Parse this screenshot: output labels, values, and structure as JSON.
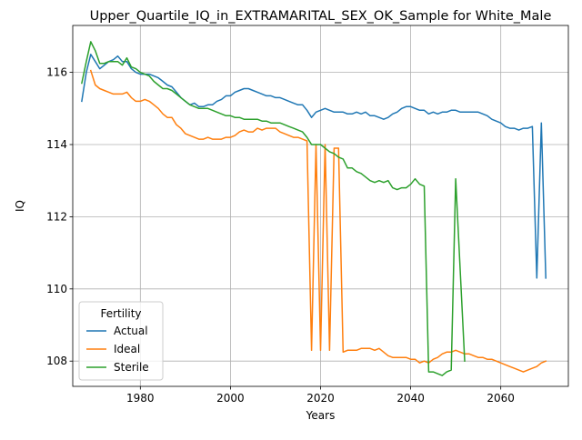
{
  "chart_data": {
    "type": "line",
    "title": "Upper_Quartile_IQ_in_EXTRAMARITAL_SEX_OK_Sample for White_Male",
    "xlabel": "Years",
    "ylabel": "IQ",
    "xlim": [
      1965,
      2075
    ],
    "ylim": [
      107.3,
      117.3
    ],
    "xticks": [
      1980,
      2000,
      2020,
      2040,
      2060
    ],
    "yticks": [
      108,
      110,
      112,
      114,
      116
    ],
    "grid": true,
    "legend": {
      "title": "Fertility",
      "placement": "lower-left"
    },
    "series": [
      {
        "name": "Actual",
        "color": "#1f77b4",
        "points": [
          [
            1967,
            115.2
          ],
          [
            1968,
            116.0
          ],
          [
            1969,
            116.5
          ],
          [
            1970,
            116.3
          ],
          [
            1971,
            116.1
          ],
          [
            1972,
            116.2
          ],
          [
            1973,
            116.3
          ],
          [
            1974,
            116.35
          ],
          [
            1975,
            116.45
          ],
          [
            1976,
            116.3
          ],
          [
            1977,
            116.3
          ],
          [
            1978,
            116.1
          ],
          [
            1979,
            116.0
          ],
          [
            1980,
            115.95
          ],
          [
            1981,
            115.95
          ],
          [
            1982,
            115.95
          ],
          [
            1983,
            115.9
          ],
          [
            1984,
            115.85
          ],
          [
            1985,
            115.75
          ],
          [
            1986,
            115.65
          ],
          [
            1987,
            115.6
          ],
          [
            1988,
            115.45
          ],
          [
            1989,
            115.3
          ],
          [
            1990,
            115.2
          ],
          [
            1991,
            115.1
          ],
          [
            1992,
            115.15
          ],
          [
            1993,
            115.05
          ],
          [
            1994,
            115.05
          ],
          [
            1995,
            115.1
          ],
          [
            1996,
            115.1
          ],
          [
            1997,
            115.2
          ],
          [
            1998,
            115.25
          ],
          [
            1999,
            115.35
          ],
          [
            2000,
            115.35
          ],
          [
            2001,
            115.45
          ],
          [
            2002,
            115.5
          ],
          [
            2003,
            115.55
          ],
          [
            2004,
            115.55
          ],
          [
            2005,
            115.5
          ],
          [
            2006,
            115.45
          ],
          [
            2007,
            115.4
          ],
          [
            2008,
            115.35
          ],
          [
            2009,
            115.35
          ],
          [
            2010,
            115.3
          ],
          [
            2011,
            115.3
          ],
          [
            2012,
            115.25
          ],
          [
            2013,
            115.2
          ],
          [
            2014,
            115.15
          ],
          [
            2015,
            115.1
          ],
          [
            2016,
            115.1
          ],
          [
            2017,
            114.95
          ],
          [
            2018,
            114.75
          ],
          [
            2019,
            114.9
          ],
          [
            2020,
            114.95
          ],
          [
            2021,
            115.0
          ],
          [
            2022,
            114.95
          ],
          [
            2023,
            114.9
          ],
          [
            2024,
            114.9
          ],
          [
            2025,
            114.9
          ],
          [
            2026,
            114.85
          ],
          [
            2027,
            114.85
          ],
          [
            2028,
            114.9
          ],
          [
            2029,
            114.85
          ],
          [
            2030,
            114.9
          ],
          [
            2031,
            114.8
          ],
          [
            2032,
            114.8
          ],
          [
            2033,
            114.75
          ],
          [
            2034,
            114.7
          ],
          [
            2035,
            114.75
          ],
          [
            2036,
            114.85
          ],
          [
            2037,
            114.9
          ],
          [
            2038,
            115.0
          ],
          [
            2039,
            115.05
          ],
          [
            2040,
            115.05
          ],
          [
            2041,
            115.0
          ],
          [
            2042,
            114.95
          ],
          [
            2043,
            114.95
          ],
          [
            2044,
            114.85
          ],
          [
            2045,
            114.9
          ],
          [
            2046,
            114.85
          ],
          [
            2047,
            114.9
          ],
          [
            2048,
            114.9
          ],
          [
            2049,
            114.95
          ],
          [
            2050,
            114.95
          ],
          [
            2051,
            114.9
          ],
          [
            2052,
            114.9
          ],
          [
            2053,
            114.9
          ],
          [
            2054,
            114.9
          ],
          [
            2055,
            114.9
          ],
          [
            2056,
            114.85
          ],
          [
            2057,
            114.8
          ],
          [
            2058,
            114.7
          ],
          [
            2059,
            114.65
          ],
          [
            2060,
            114.6
          ],
          [
            2061,
            114.5
          ],
          [
            2062,
            114.45
          ],
          [
            2063,
            114.45
          ],
          [
            2064,
            114.4
          ],
          [
            2065,
            114.45
          ],
          [
            2066,
            114.45
          ],
          [
            2067,
            114.5
          ],
          [
            2068,
            110.3
          ],
          [
            2069,
            114.6
          ],
          [
            2070,
            110.3
          ]
        ]
      },
      {
        "name": "Ideal",
        "color": "#ff7f0e",
        "points": [
          [
            1969,
            116.05
          ],
          [
            1970,
            115.65
          ],
          [
            1971,
            115.55
          ],
          [
            1972,
            115.5
          ],
          [
            1973,
            115.45
          ],
          [
            1974,
            115.4
          ],
          [
            1975,
            115.4
          ],
          [
            1976,
            115.4
          ],
          [
            1977,
            115.45
          ],
          [
            1978,
            115.3
          ],
          [
            1979,
            115.2
          ],
          [
            1980,
            115.2
          ],
          [
            1981,
            115.25
          ],
          [
            1982,
            115.2
          ],
          [
            1983,
            115.1
          ],
          [
            1984,
            115.0
          ],
          [
            1985,
            114.85
          ],
          [
            1986,
            114.75
          ],
          [
            1987,
            114.75
          ],
          [
            1988,
            114.55
          ],
          [
            1989,
            114.45
          ],
          [
            1990,
            114.3
          ],
          [
            1991,
            114.25
          ],
          [
            1992,
            114.2
          ],
          [
            1993,
            114.15
          ],
          [
            1994,
            114.15
          ],
          [
            1995,
            114.2
          ],
          [
            1996,
            114.15
          ],
          [
            1997,
            114.15
          ],
          [
            1998,
            114.15
          ],
          [
            1999,
            114.2
          ],
          [
            2000,
            114.2
          ],
          [
            2001,
            114.25
          ],
          [
            2002,
            114.35
          ],
          [
            2003,
            114.4
          ],
          [
            2004,
            114.35
          ],
          [
            2005,
            114.35
          ],
          [
            2006,
            114.45
          ],
          [
            2007,
            114.4
          ],
          [
            2008,
            114.45
          ],
          [
            2009,
            114.45
          ],
          [
            2010,
            114.45
          ],
          [
            2011,
            114.35
          ],
          [
            2012,
            114.3
          ],
          [
            2013,
            114.25
          ],
          [
            2014,
            114.2
          ],
          [
            2015,
            114.2
          ],
          [
            2016,
            114.15
          ],
          [
            2017,
            114.1
          ],
          [
            2018,
            108.3
          ],
          [
            2019,
            114.0
          ],
          [
            2020,
            108.3
          ],
          [
            2021,
            114.0
          ],
          [
            2022,
            108.3
          ],
          [
            2023,
            113.9
          ],
          [
            2024,
            113.9
          ],
          [
            2025,
            108.25
          ],
          [
            2026,
            108.3
          ],
          [
            2027,
            108.3
          ],
          [
            2028,
            108.3
          ],
          [
            2029,
            108.35
          ],
          [
            2030,
            108.35
          ],
          [
            2031,
            108.35
          ],
          [
            2032,
            108.3
          ],
          [
            2033,
            108.35
          ],
          [
            2034,
            108.25
          ],
          [
            2035,
            108.15
          ],
          [
            2036,
            108.1
          ],
          [
            2037,
            108.1
          ],
          [
            2038,
            108.1
          ],
          [
            2039,
            108.1
          ],
          [
            2040,
            108.05
          ],
          [
            2041,
            108.05
          ],
          [
            2042,
            107.95
          ],
          [
            2043,
            108.0
          ],
          [
            2044,
            107.95
          ],
          [
            2045,
            108.05
          ],
          [
            2046,
            108.1
          ],
          [
            2047,
            108.2
          ],
          [
            2048,
            108.25
          ],
          [
            2049,
            108.25
          ],
          [
            2050,
            108.3
          ],
          [
            2051,
            108.25
          ],
          [
            2052,
            108.2
          ],
          [
            2053,
            108.2
          ],
          [
            2054,
            108.15
          ],
          [
            2055,
            108.1
          ],
          [
            2056,
            108.1
          ],
          [
            2057,
            108.05
          ],
          [
            2058,
            108.05
          ],
          [
            2059,
            108.0
          ],
          [
            2060,
            107.95
          ],
          [
            2061,
            107.9
          ],
          [
            2062,
            107.85
          ],
          [
            2063,
            107.8
          ],
          [
            2064,
            107.75
          ],
          [
            2065,
            107.7
          ],
          [
            2066,
            107.75
          ],
          [
            2067,
            107.8
          ],
          [
            2068,
            107.85
          ],
          [
            2069,
            107.95
          ],
          [
            2070,
            108.0
          ]
        ]
      },
      {
        "name": "Sterile",
        "color": "#2ca02c",
        "points": [
          [
            1967,
            115.7
          ],
          [
            1968,
            116.3
          ],
          [
            1969,
            116.85
          ],
          [
            1970,
            116.6
          ],
          [
            1971,
            116.25
          ],
          [
            1972,
            116.25
          ],
          [
            1973,
            116.3
          ],
          [
            1974,
            116.3
          ],
          [
            1975,
            116.3
          ],
          [
            1976,
            116.2
          ],
          [
            1977,
            116.4
          ],
          [
            1978,
            116.15
          ],
          [
            1979,
            116.1
          ],
          [
            1980,
            116.0
          ],
          [
            1981,
            115.95
          ],
          [
            1982,
            115.9
          ],
          [
            1983,
            115.75
          ],
          [
            1984,
            115.65
          ],
          [
            1985,
            115.55
          ],
          [
            1986,
            115.55
          ],
          [
            1987,
            115.5
          ],
          [
            1988,
            115.4
          ],
          [
            1989,
            115.3
          ],
          [
            1990,
            115.2
          ],
          [
            1991,
            115.1
          ],
          [
            1992,
            115.05
          ],
          [
            1993,
            115.0
          ],
          [
            1994,
            115.0
          ],
          [
            1995,
            115.0
          ],
          [
            1996,
            114.95
          ],
          [
            1997,
            114.9
          ],
          [
            1998,
            114.85
          ],
          [
            1999,
            114.8
          ],
          [
            2000,
            114.8
          ],
          [
            2001,
            114.75
          ],
          [
            2002,
            114.75
          ],
          [
            2003,
            114.7
          ],
          [
            2004,
            114.7
          ],
          [
            2005,
            114.7
          ],
          [
            2006,
            114.7
          ],
          [
            2007,
            114.65
          ],
          [
            2008,
            114.65
          ],
          [
            2009,
            114.6
          ],
          [
            2010,
            114.6
          ],
          [
            2011,
            114.6
          ],
          [
            2012,
            114.55
          ],
          [
            2013,
            114.5
          ],
          [
            2014,
            114.45
          ],
          [
            2015,
            114.4
          ],
          [
            2016,
            114.35
          ],
          [
            2017,
            114.2
          ],
          [
            2018,
            114.0
          ],
          [
            2019,
            114.0
          ],
          [
            2020,
            114.0
          ],
          [
            2021,
            113.9
          ],
          [
            2022,
            113.8
          ],
          [
            2023,
            113.75
          ],
          [
            2024,
            113.65
          ],
          [
            2025,
            113.6
          ],
          [
            2026,
            113.35
          ],
          [
            2027,
            113.35
          ],
          [
            2028,
            113.25
          ],
          [
            2029,
            113.2
          ],
          [
            2030,
            113.1
          ],
          [
            2031,
            113.0
          ],
          [
            2032,
            112.95
          ],
          [
            2033,
            113.0
          ],
          [
            2034,
            112.95
          ],
          [
            2035,
            113.0
          ],
          [
            2036,
            112.8
          ],
          [
            2037,
            112.75
          ],
          [
            2038,
            112.8
          ],
          [
            2039,
            112.8
          ],
          [
            2040,
            112.9
          ],
          [
            2041,
            113.05
          ],
          [
            2042,
            112.9
          ],
          [
            2043,
            112.85
          ],
          [
            2044,
            107.7
          ],
          [
            2045,
            107.7
          ],
          [
            2046,
            107.65
          ],
          [
            2047,
            107.6
          ],
          [
            2048,
            107.7
          ],
          [
            2049,
            107.75
          ],
          [
            2050,
            113.05
          ],
          [
            2051,
            110.5
          ],
          [
            2052,
            108.0
          ]
        ]
      }
    ]
  }
}
